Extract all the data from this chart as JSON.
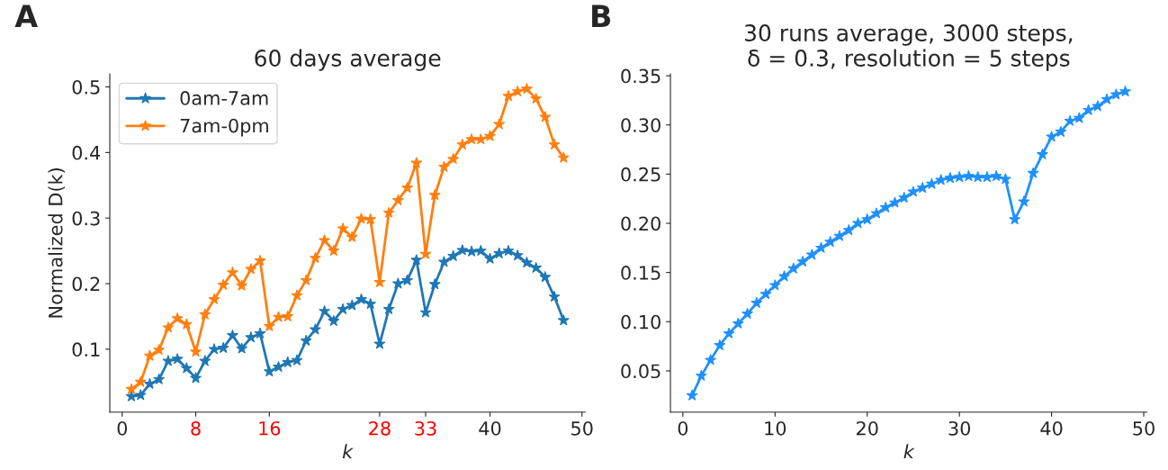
{
  "chart_data": [
    {
      "type": "line",
      "title": "60 days average",
      "xlabel": "k",
      "ylabel": "Normalized D(k)",
      "annotations": [
        "A"
      ],
      "marker": "star",
      "legend": "top left",
      "grid": false,
      "x": [
        1,
        2,
        3,
        4,
        5,
        6,
        7,
        8,
        9,
        10,
        11,
        12,
        13,
        14,
        15,
        16,
        17,
        18,
        19,
        20,
        21,
        22,
        23,
        24,
        25,
        26,
        27,
        28,
        29,
        30,
        31,
        32,
        33,
        34,
        35,
        36,
        37,
        38,
        39,
        40,
        41,
        42,
        43,
        44,
        45,
        46,
        47,
        48
      ],
      "xlim": [
        -1.35,
        50.35
      ],
      "xticks": [
        0,
        8,
        16,
        28,
        33,
        40,
        50
      ],
      "ylim": [
        0.004,
        0.52
      ],
      "yticks": [
        0.1,
        0.2,
        0.3,
        0.4,
        0.5
      ],
      "series": [
        {
          "name": "0am-7am",
          "color": "#1f77b4",
          "values": [
            0.028,
            0.03,
            0.047,
            0.054,
            0.082,
            0.085,
            0.071,
            0.056,
            0.082,
            0.1,
            0.102,
            0.121,
            0.101,
            0.118,
            0.124,
            0.066,
            0.073,
            0.08,
            0.083,
            0.113,
            0.13,
            0.158,
            0.143,
            0.161,
            0.167,
            0.176,
            0.169,
            0.108,
            0.161,
            0.2,
            0.205,
            0.236,
            0.156,
            0.199,
            0.233,
            0.242,
            0.251,
            0.249,
            0.25,
            0.238,
            0.246,
            0.25,
            0.243,
            0.232,
            0.224,
            0.21,
            0.18,
            0.144
          ]
        },
        {
          "name": "7am-0pm",
          "color": "#ff7f0e",
          "values": [
            0.039,
            0.05,
            0.09,
            0.099,
            0.133,
            0.147,
            0.138,
            0.096,
            0.153,
            0.176,
            0.198,
            0.217,
            0.197,
            0.222,
            0.235,
            0.135,
            0.149,
            0.15,
            0.182,
            0.205,
            0.239,
            0.266,
            0.25,
            0.284,
            0.271,
            0.299,
            0.298,
            0.202,
            0.308,
            0.327,
            0.346,
            0.384,
            0.245,
            0.335,
            0.378,
            0.39,
            0.412,
            0.42,
            0.42,
            0.425,
            0.443,
            0.486,
            0.493,
            0.497,
            0.482,
            0.454,
            0.412,
            0.392
          ]
        }
      ]
    },
    {
      "type": "line",
      "title": "30 runs average, 3000 steps,\nδ = 0.3, resolution = 5 steps",
      "xlabel": "k",
      "annotations": [
        "B"
      ],
      "marker": "star",
      "legend": false,
      "grid": false,
      "x": [
        1,
        2,
        3,
        4,
        5,
        6,
        7,
        8,
        9,
        10,
        11,
        12,
        13,
        14,
        15,
        16,
        17,
        18,
        19,
        20,
        21,
        22,
        23,
        24,
        25,
        26,
        27,
        28,
        29,
        30,
        31,
        32,
        33,
        34,
        35,
        36,
        37,
        38,
        39,
        40,
        41,
        42,
        43,
        44,
        45,
        46,
        47,
        48
      ],
      "xlim": [
        -1.35,
        50.35
      ],
      "xticks": [
        0,
        10,
        20,
        30,
        40,
        50
      ],
      "ylim": [
        0.008,
        0.352
      ],
      "yticks": [
        0.05,
        {
          "value": 0.1,
          "label": "0.10"
        },
        0.15,
        {
          "value": 0.2,
          "label": "0.20"
        },
        0.25,
        {
          "value": 0.3,
          "label": "0.30"
        },
        0.35
      ],
      "series": [
        {
          "color": "#1e90ff",
          "values": [
            0.025,
            0.045,
            0.061,
            0.076,
            0.088,
            0.098,
            0.108,
            0.119,
            0.128,
            0.137,
            0.146,
            0.154,
            0.161,
            0.168,
            0.175,
            0.181,
            0.187,
            0.193,
            0.2,
            0.204,
            0.21,
            0.216,
            0.221,
            0.226,
            0.232,
            0.236,
            0.24,
            0.244,
            0.246,
            0.247,
            0.248,
            0.247,
            0.247,
            0.248,
            0.245,
            0.204,
            0.222,
            0.251,
            0.27,
            0.288,
            0.293,
            0.304,
            0.307,
            0.315,
            0.319,
            0.326,
            0.331,
            0.334
          ]
        }
      ]
    }
  ]
}
